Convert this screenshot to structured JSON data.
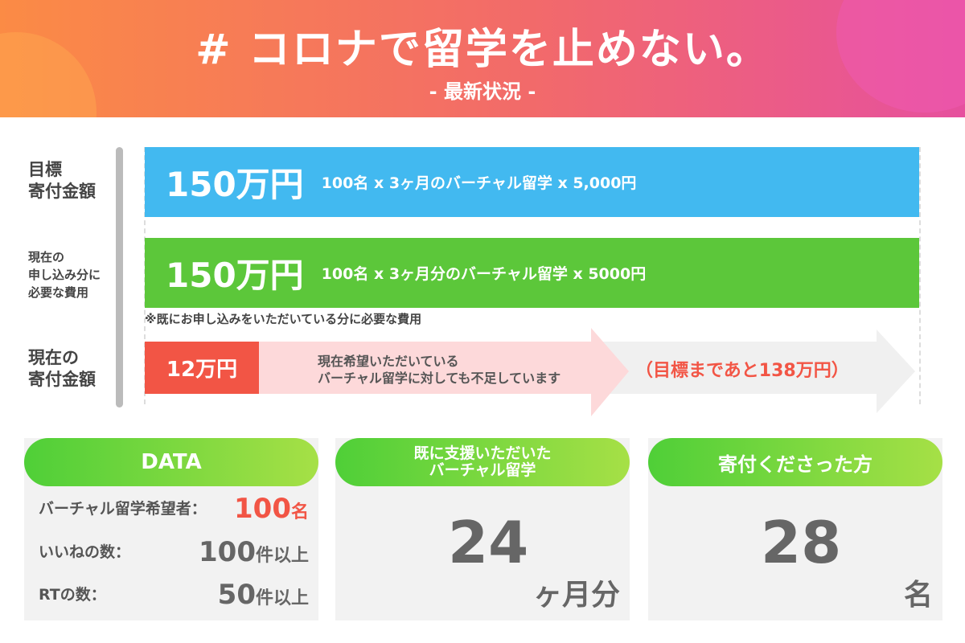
{
  "header": {
    "title": "# コロナで留学を止めない。",
    "subtitle": "- 最新状況 -"
  },
  "rows": {
    "target": {
      "label1": "目標",
      "label2": "寄付金額",
      "amount": "150万円",
      "desc": "100名 x 3ヶ月のバーチャル留学 x 5,000円"
    },
    "current_need": {
      "label1": "現在の",
      "label2": "申し込み分に",
      "label3": "必要な費用",
      "amount": "150万円",
      "desc": "100名 x 3ヶ月分のバーチャル留学 x 5000円",
      "note": "※既にお申し込みをいただいている分に必要な費用"
    },
    "donated": {
      "label1": "現在の",
      "label2": "寄付金額",
      "amount": "12万円",
      "msg1": "現在希望いただいている",
      "msg2": "バーチャル留学に対しても不足しています",
      "remaining": "（目標まであと138万円）"
    }
  },
  "colors": {
    "blue": "#42b9f0",
    "green": "#5cc73a",
    "red": "#f25545",
    "pink": "#fdd9da",
    "gray_arrow": "#f0f0f0"
  },
  "cards": {
    "data": {
      "title": "DATA",
      "items": [
        {
          "label": "バーチャル留学希望者：",
          "value": "100",
          "unit": "名"
        },
        {
          "label": "いいねの数：",
          "value": "100",
          "unit": "件以上"
        },
        {
          "label": "RTの数：",
          "value": "50",
          "unit": "件以上"
        }
      ]
    },
    "supported": {
      "title1": "既に支援いただいた",
      "title2": "バーチャル留学",
      "value": "24",
      "unit": "ヶ月分"
    },
    "donors": {
      "title": "寄付くださった方",
      "value": "28",
      "unit": "名"
    }
  }
}
